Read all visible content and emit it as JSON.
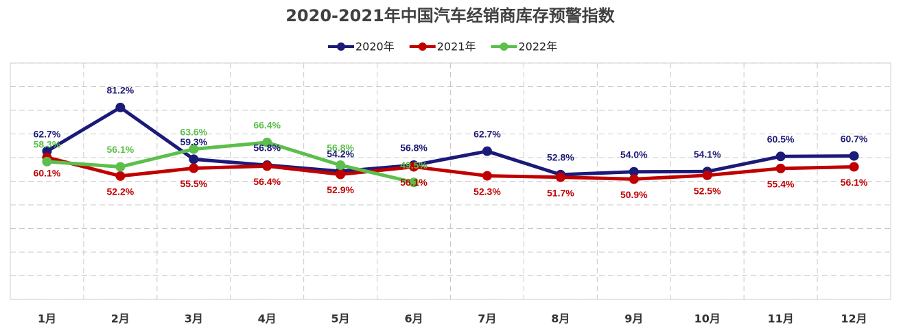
{
  "chart_data": {
    "type": "line",
    "title": "2020-2021年中国汽车经销商库存预警指数",
    "categories": [
      "1月",
      "2月",
      "3月",
      "4月",
      "5月",
      "6月",
      "7月",
      "8月",
      "9月",
      "10月",
      "11月",
      "12月"
    ],
    "series": [
      {
        "name": "2020年",
        "color": "#1c1a78",
        "values": [
          62.7,
          81.2,
          59.3,
          56.8,
          54.2,
          56.8,
          62.7,
          52.8,
          54.0,
          54.1,
          60.5,
          60.7
        ],
        "value_labels": [
          "62.7%",
          "81.2%",
          "59.3%",
          "56.8%",
          "54.2%",
          "56.8%",
          "62.7%",
          "52.8%",
          "54.0%",
          "54.1%",
          "60.5%",
          "60.7%"
        ]
      },
      {
        "name": "2021年",
        "color": "#c00000",
        "values": [
          60.1,
          52.2,
          55.5,
          56.4,
          52.9,
          56.1,
          52.3,
          51.7,
          50.9,
          52.5,
          55.4,
          56.1
        ],
        "value_labels": [
          "60.1%",
          "52.2%",
          "55.5%",
          "56.4%",
          "52.9%",
          "56.1%",
          "52.3%",
          "51.7%",
          "50.9%",
          "52.5%",
          "55.4%",
          "56.1%"
        ]
      },
      {
        "name": "2022年",
        "color": "#5cbf4c",
        "values": [
          58.3,
          56.1,
          63.6,
          66.4,
          56.8,
          49.5,
          null,
          null,
          null,
          null,
          null,
          null
        ],
        "value_labels": [
          "58.3%",
          "56.1%",
          "63.6%",
          "66.4%",
          "56.8%",
          "49.5%",
          null,
          null,
          null,
          null,
          null,
          null
        ]
      }
    ],
    "ylim": [
      0,
      100
    ],
    "yticks": [
      0,
      10,
      20,
      30,
      40,
      50,
      60,
      70,
      80,
      90,
      100
    ],
    "grid": true
  }
}
